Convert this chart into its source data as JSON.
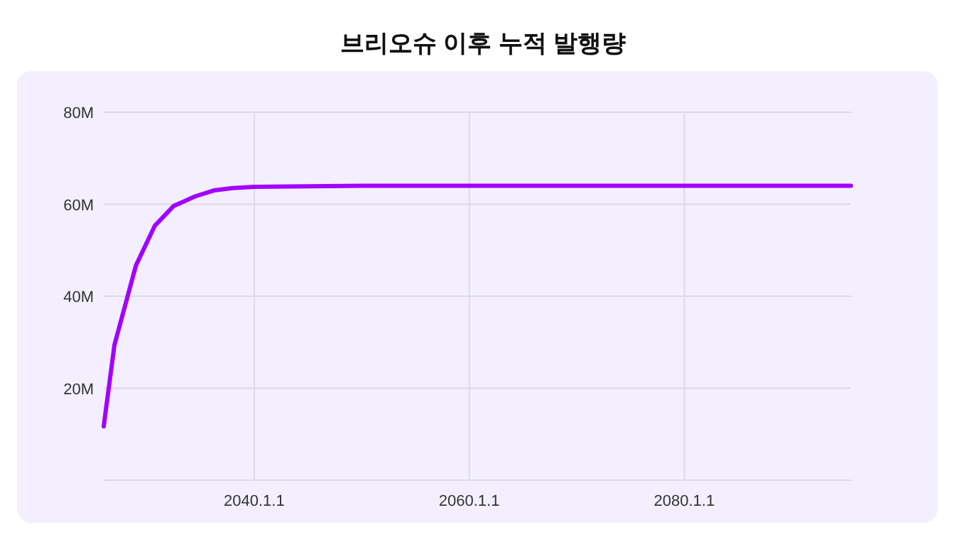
{
  "chart_data": {
    "type": "line",
    "title": "브리오슈 이후 누적 발행량",
    "x": [
      "2026-01-01",
      "2027-01-01",
      "2029-01-01",
      "2030-10-01",
      "2032-07-01",
      "2034-07-01",
      "2036-04-01",
      "2038-01-01",
      "2040-01-01",
      "2050-01-01",
      "2070-01-01",
      "2095-07-01"
    ],
    "series": [
      {
        "color": "#a100ff",
        "values": [
          11700000,
          29400000,
          46700000,
          55300000,
          59600000,
          61700000,
          63000000,
          63500000,
          63800000,
          64000000,
          64000000,
          64000000
        ]
      }
    ],
    "xlim": [
      "2026-01-01",
      "2095-07-01"
    ],
    "xticks": [
      {
        "value": "2040-01-01",
        "label": "2040.1.1"
      },
      {
        "value": "2060-01-01",
        "label": "2060.1.1"
      },
      {
        "value": "2080-01-01",
        "label": "2080.1.1"
      }
    ],
    "ylim": [
      0,
      80000000
    ],
    "yticks": [
      {
        "value": 20000000,
        "label": "20M"
      },
      {
        "value": 40000000,
        "label": "40M"
      },
      {
        "value": 60000000,
        "label": "60M"
      },
      {
        "value": 80000000,
        "label": "80M"
      }
    ],
    "grid": true,
    "marker": "none",
    "line_style": "solid"
  }
}
